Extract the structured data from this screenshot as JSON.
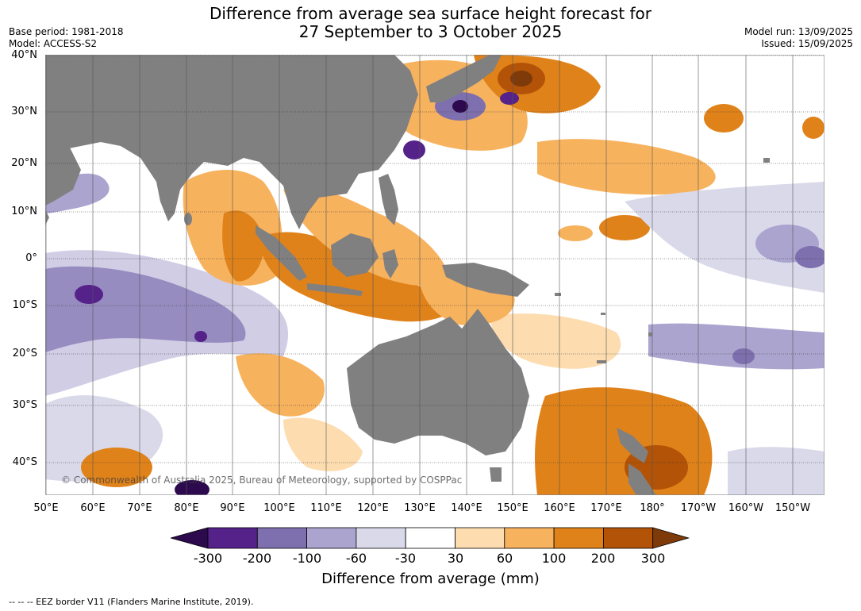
{
  "title": {
    "line1": "Difference from average sea surface height forecast for",
    "line2": "27 September to 3 October 2025"
  },
  "meta": {
    "base_period": "Base period: 1981-2018",
    "model": "Model: ACCESS-S2",
    "model_run": "Model run: 13/09/2025",
    "issued": "Issued: 15/09/2025"
  },
  "map": {
    "lat_labels": [
      "40°N",
      "30°N",
      "20°N",
      "10°N",
      "0°",
      "10°S",
      "20°S",
      "30°S",
      "40°S"
    ],
    "lon_labels": [
      "50°E",
      "60°E",
      "70°E",
      "80°E",
      "90°E",
      "100°E",
      "110°E",
      "120°E",
      "130°E",
      "140°E",
      "150°E",
      "160°E",
      "170°E",
      "180°",
      "170°W",
      "160°W",
      "150°W"
    ],
    "copyright": "© Commonwealth of Australia 2025, Bureau of Meteorology, supported by COSPPac",
    "land_color": "#808080",
    "ocean_color": "#ffffff"
  },
  "legend": {
    "title": "Difference from average (mm)",
    "ticks": [
      "-300",
      "-200",
      "-100",
      "-60",
      "-30",
      "30",
      "60",
      "100",
      "200",
      "300"
    ],
    "colors": [
      "#2d0a4e",
      "#55228a",
      "#7e70ae",
      "#aba4cf",
      "#d9d9ea",
      "#ffffff",
      "#fddcb0",
      "#f7b25e",
      "#e0821a",
      "#b25308",
      "#7f3a0a"
    ]
  },
  "footnote": "--  --  -- EEZ border V11 (Flanders Marine Institute, 2019)."
}
